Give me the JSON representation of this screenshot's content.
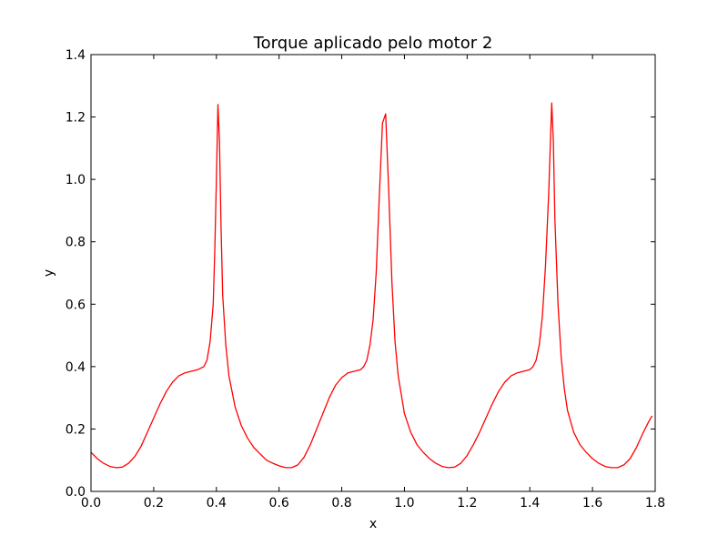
{
  "chart_data": {
    "type": "line",
    "title": "Torque aplicado pelo motor 2",
    "xlabel": "x",
    "ylabel": "y",
    "xlim": [
      0.0,
      1.8
    ],
    "ylim": [
      0.0,
      1.4
    ],
    "grid": false,
    "xticks": [
      "0.0",
      "0.2",
      "0.4",
      "0.6",
      "0.8",
      "1.0",
      "1.2",
      "1.4",
      "1.6",
      "1.8"
    ],
    "yticks": [
      "0.0",
      "0.2",
      "0.4",
      "0.6",
      "0.8",
      "1.0",
      "1.2",
      "1.4"
    ],
    "series": [
      {
        "color": "#ff0000",
        "x": [
          0.0,
          0.02,
          0.04,
          0.06,
          0.08,
          0.1,
          0.12,
          0.14,
          0.16,
          0.18,
          0.2,
          0.22,
          0.24,
          0.26,
          0.28,
          0.3,
          0.32,
          0.34,
          0.36,
          0.37,
          0.38,
          0.39,
          0.395,
          0.4,
          0.405,
          0.41,
          0.415,
          0.42,
          0.43,
          0.44,
          0.46,
          0.48,
          0.5,
          0.52,
          0.54,
          0.56,
          0.58,
          0.6,
          0.62,
          0.64,
          0.66,
          0.68,
          0.7,
          0.72,
          0.74,
          0.76,
          0.78,
          0.8,
          0.82,
          0.84,
          0.86,
          0.87,
          0.88,
          0.89,
          0.9,
          0.91,
          0.92,
          0.93,
          0.94,
          0.95,
          0.96,
          0.97,
          0.98,
          1.0,
          1.02,
          1.04,
          1.06,
          1.08,
          1.1,
          1.12,
          1.14,
          1.16,
          1.18,
          1.2,
          1.22,
          1.24,
          1.26,
          1.28,
          1.3,
          1.32,
          1.34,
          1.36,
          1.38,
          1.4,
          1.41,
          1.42,
          1.43,
          1.44,
          1.45,
          1.46,
          1.465,
          1.47,
          1.475,
          1.48,
          1.49,
          1.5,
          1.51,
          1.52,
          1.54,
          1.56,
          1.58,
          1.6,
          1.62,
          1.64,
          1.66,
          1.68,
          1.7,
          1.72,
          1.74,
          1.76,
          1.78,
          1.79
        ],
        "y": [
          0.125,
          0.105,
          0.09,
          0.08,
          0.076,
          0.078,
          0.09,
          0.112,
          0.145,
          0.19,
          0.235,
          0.28,
          0.32,
          0.35,
          0.37,
          0.38,
          0.385,
          0.39,
          0.4,
          0.42,
          0.48,
          0.6,
          0.78,
          1.0,
          1.24,
          1.12,
          0.85,
          0.63,
          0.47,
          0.37,
          0.27,
          0.21,
          0.17,
          0.14,
          0.12,
          0.1,
          0.09,
          0.082,
          0.076,
          0.076,
          0.085,
          0.11,
          0.15,
          0.2,
          0.25,
          0.3,
          0.34,
          0.365,
          0.38,
          0.385,
          0.39,
          0.4,
          0.42,
          0.47,
          0.55,
          0.7,
          0.95,
          1.18,
          1.21,
          0.96,
          0.67,
          0.48,
          0.37,
          0.25,
          0.19,
          0.15,
          0.125,
          0.105,
          0.09,
          0.08,
          0.076,
          0.078,
          0.09,
          0.115,
          0.15,
          0.19,
          0.235,
          0.28,
          0.32,
          0.35,
          0.37,
          0.38,
          0.385,
          0.39,
          0.4,
          0.42,
          0.47,
          0.56,
          0.72,
          0.95,
          1.1,
          1.245,
          1.12,
          0.87,
          0.6,
          0.43,
          0.33,
          0.26,
          0.19,
          0.15,
          0.125,
          0.105,
          0.09,
          0.08,
          0.076,
          0.076,
          0.085,
          0.105,
          0.14,
          0.185,
          0.225,
          0.242
        ]
      }
    ]
  }
}
